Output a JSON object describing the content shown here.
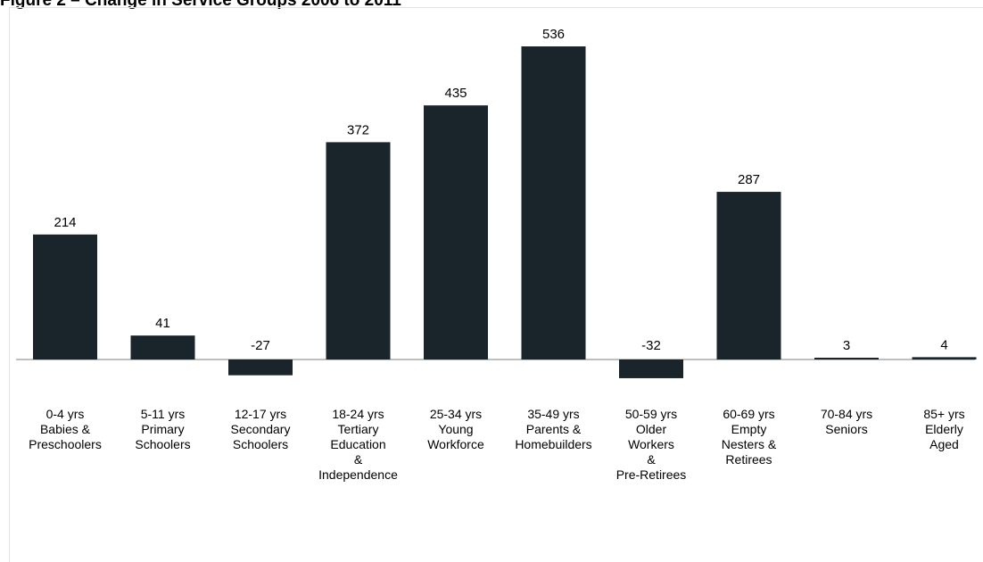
{
  "title": "Figure 2 – Change in Service Groups 2006 to 2011",
  "chart_data": {
    "type": "bar",
    "title": "Figure 2 – Change in Service Groups 2006 to 2011",
    "categories": [
      [
        "0-4 yrs",
        "Babies &",
        "Preschoolers"
      ],
      [
        "5-11 yrs",
        "Primary",
        "Schoolers"
      ],
      [
        "12-17 yrs",
        "Secondary",
        "Schoolers"
      ],
      [
        "18-24 yrs",
        "Tertiary",
        "Education",
        "&",
        "Independence"
      ],
      [
        "25-34 yrs",
        "Young",
        "Workforce"
      ],
      [
        "35-49 yrs",
        "Parents &",
        "Homebuilders"
      ],
      [
        "50-59 yrs",
        "Older",
        "Workers",
        "&",
        "Pre-Retirees"
      ],
      [
        "60-69 yrs",
        "Empty",
        "Nesters &",
        "Retirees"
      ],
      [
        "70-84 yrs",
        "Seniors"
      ],
      [
        "85+ yrs",
        "Elderly",
        "Aged"
      ]
    ],
    "values": [
      214,
      41,
      -27,
      372,
      435,
      536,
      -32,
      287,
      3,
      4
    ],
    "data_labels": [
      "214",
      "41",
      "-27",
      "372",
      "435",
      "536",
      "-32",
      "287",
      "3",
      "4"
    ],
    "bar_color": "#1a242b",
    "xlabel": "",
    "ylabel": "",
    "grid": false,
    "legend": "none"
  }
}
